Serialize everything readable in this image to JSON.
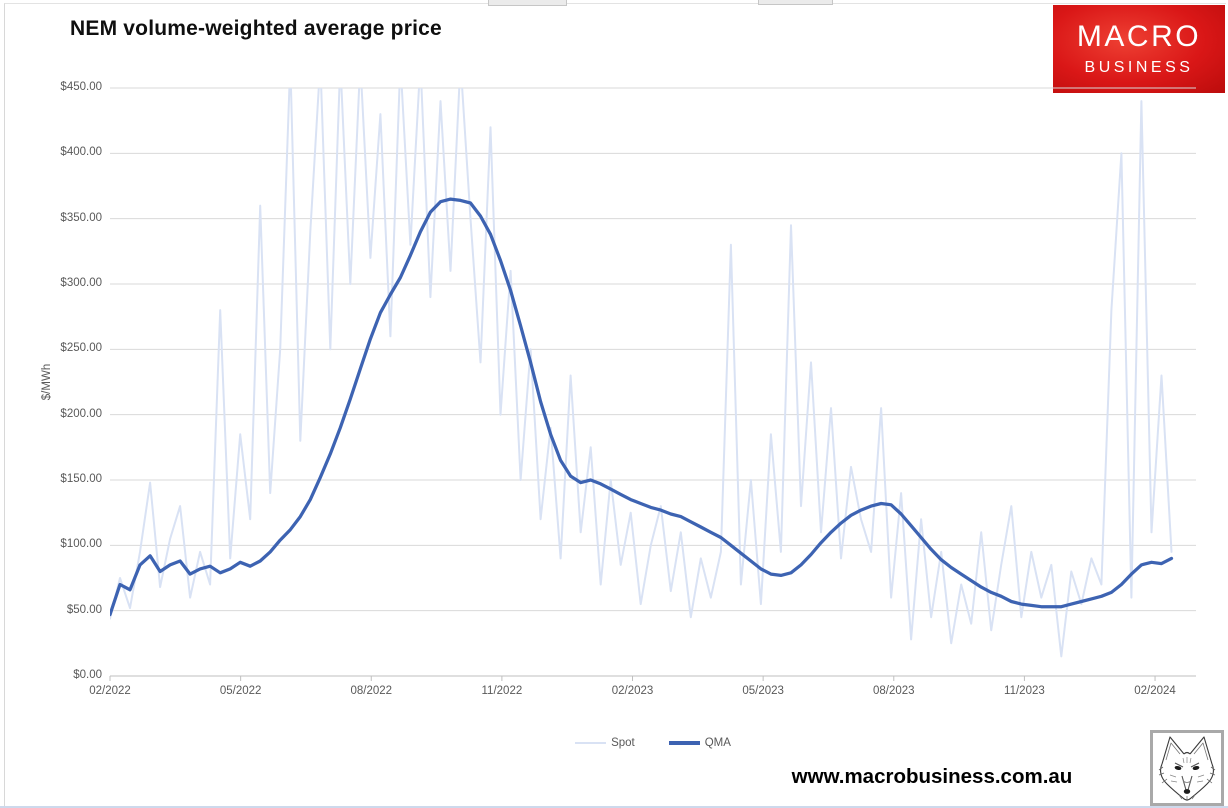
{
  "page": {
    "website": "www.macrobusiness.com.au",
    "logo": {
      "line1": "MACRO",
      "line2": "BUSINESS",
      "bg_color": "#d71717",
      "text_color": "#ffffff"
    },
    "fox_image": "fox-pencil-sketch"
  },
  "chart_data": {
    "type": "line",
    "title": "NEM volume-weighted average price",
    "xlabel": "",
    "ylabel": "$/MWh",
    "ylim": [
      0,
      450
    ],
    "grid": "horizontal",
    "grid_color": "#d9d9d9",
    "axis_color": "#bfbfbf",
    "tick_text_color": "#595959",
    "legend_position": "bottom",
    "legend": [
      "Spot",
      "QMA"
    ],
    "y_tick_labels": [
      "$450.00",
      "$400.00",
      "$350.00",
      "$300.00",
      "$250.00",
      "$200.00",
      "$150.00",
      "$100.00",
      "$50.00",
      "$0.00"
    ],
    "x_tick_labels": [
      "02/2022",
      "05/2022",
      "08/2022",
      "11/2022",
      "02/2023",
      "05/2023",
      "08/2023",
      "11/2023",
      "02/2024"
    ],
    "x_unit": "weeks since 02/2022 (values in $/MWh, spot spikes clipped at $450)",
    "series": [
      {
        "name": "Spot",
        "color": "#d9e2f4",
        "width": 2,
        "values": [
          44,
          75,
          52,
          95,
          148,
          68,
          105,
          130,
          60,
          95,
          70,
          280,
          90,
          185,
          120,
          360,
          140,
          250,
          470,
          180,
          340,
          470,
          250,
          470,
          300,
          470,
          320,
          430,
          260,
          470,
          330,
          470,
          290,
          440,
          310,
          470,
          350,
          240,
          420,
          200,
          310,
          150,
          250,
          120,
          190,
          90,
          230,
          110,
          175,
          70,
          150,
          85,
          125,
          55,
          100,
          130,
          65,
          110,
          45,
          90,
          60,
          95,
          330,
          70,
          150,
          55,
          185,
          95,
          345,
          130,
          240,
          110,
          205,
          90,
          160,
          120,
          95,
          205,
          60,
          140,
          28,
          120,
          45,
          95,
          25,
          70,
          40,
          110,
          35,
          85,
          130,
          45,
          95,
          60,
          85,
          15,
          80,
          55,
          90,
          70,
          280,
          400,
          60,
          440,
          110,
          230,
          95
        ]
      },
      {
        "name": "QMA",
        "color": "#3d63b2",
        "width": 3.25,
        "values": [
          47,
          70,
          66,
          85,
          92,
          80,
          85,
          88,
          78,
          82,
          84,
          79,
          82,
          87,
          84,
          88,
          95,
          104,
          112,
          122,
          135,
          152,
          170,
          190,
          212,
          235,
          258,
          278,
          292,
          305,
          322,
          340,
          355,
          363,
          365,
          364,
          362,
          352,
          338,
          318,
          295,
          268,
          240,
          210,
          185,
          165,
          153,
          148,
          150,
          147,
          143,
          139,
          135,
          132,
          129,
          127,
          124,
          122,
          118,
          114,
          110,
          106,
          100,
          94,
          88,
          82,
          78,
          77,
          79,
          85,
          93,
          102,
          110,
          117,
          123,
          127,
          130,
          132,
          131,
          124,
          115,
          106,
          97,
          89,
          83,
          78,
          73,
          68,
          64,
          61,
          57,
          55,
          54,
          53,
          53,
          53,
          55,
          57,
          59,
          61,
          64,
          70,
          78,
          85,
          87,
          86,
          90
        ]
      }
    ]
  }
}
